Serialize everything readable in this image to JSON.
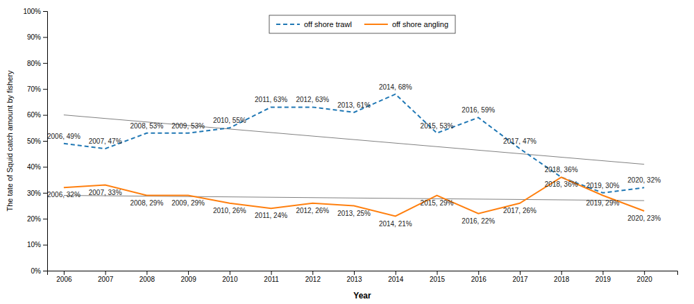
{
  "chart_data": {
    "type": "line",
    "xlabel": "Year",
    "ylabel": "The tate of Squid catch amount by fishery",
    "x": [
      2006,
      2007,
      2008,
      2009,
      2010,
      2011,
      2012,
      2013,
      2014,
      2015,
      2016,
      2017,
      2018,
      2019,
      2020
    ],
    "xlim": [
      2005.6,
      2020.8
    ],
    "xticks": [
      2006,
      2007,
      2008,
      2009,
      2010,
      2011,
      2012,
      2013,
      2014,
      2015,
      2016,
      2017,
      2018,
      2019,
      2020
    ],
    "ylim": [
      0,
      100
    ],
    "yticks": [
      {
        "value": 0,
        "label": "0%"
      },
      {
        "value": 10,
        "label": "10%"
      },
      {
        "value": 20,
        "label": "20%"
      },
      {
        "value": 30,
        "label": "30%"
      },
      {
        "value": 40,
        "label": "40%"
      },
      {
        "value": 50,
        "label": "50%"
      },
      {
        "value": 60,
        "label": "60%"
      },
      {
        "value": 70,
        "label": "70%"
      },
      {
        "value": 80,
        "label": "80%"
      },
      {
        "value": 90,
        "label": "90%"
      },
      {
        "value": 100,
        "label": "100%"
      }
    ],
    "grid": false,
    "legend": "top",
    "data_labels": true,
    "series": [
      {
        "name": "off shore trawl",
        "line_style": "dashed",
        "values": [
          49,
          47,
          53,
          53,
          55,
          63,
          63,
          61,
          68,
          53,
          59,
          47,
          36,
          30,
          32
        ],
        "value_labels": [
          "2006, 49%",
          "2007, 47%",
          "2008, 53%",
          "2009, 53%",
          "2010, 55%",
          "2011, 63%",
          "2012, 63%",
          "2013, 61%",
          "2014, 68%",
          "2015, 53%",
          "2016, 59%",
          "2017, 47%",
          "2018, 36%",
          "2019, 30%",
          "2020, 32%"
        ]
      },
      {
        "name": "off shore angling",
        "line_style": "solid",
        "values": [
          32,
          33,
          29,
          29,
          26,
          24,
          26,
          25,
          21,
          29,
          22,
          26,
          36,
          29,
          23
        ],
        "value_labels": [
          "2006, 32%",
          "2007, 33%",
          "2008, 29%",
          "2009, 29%",
          "2010, 26%",
          "2011, 24%",
          "2012, 26%",
          "2013, 25%",
          "2014, 21%",
          "2015, 29%",
          "2016, 22%",
          "2017, 26%",
          "2018, 36%",
          "2019, 29%",
          "2020, 23%"
        ]
      },
      {
        "x": [
          2006,
          2020
        ],
        "values": [
          60,
          41
        ],
        "color": "gray",
        "line_style": "solid"
      },
      {
        "x": [
          2006,
          2020
        ],
        "values": [
          29,
          27
        ],
        "color": "gray",
        "line_style": "solid"
      }
    ]
  }
}
